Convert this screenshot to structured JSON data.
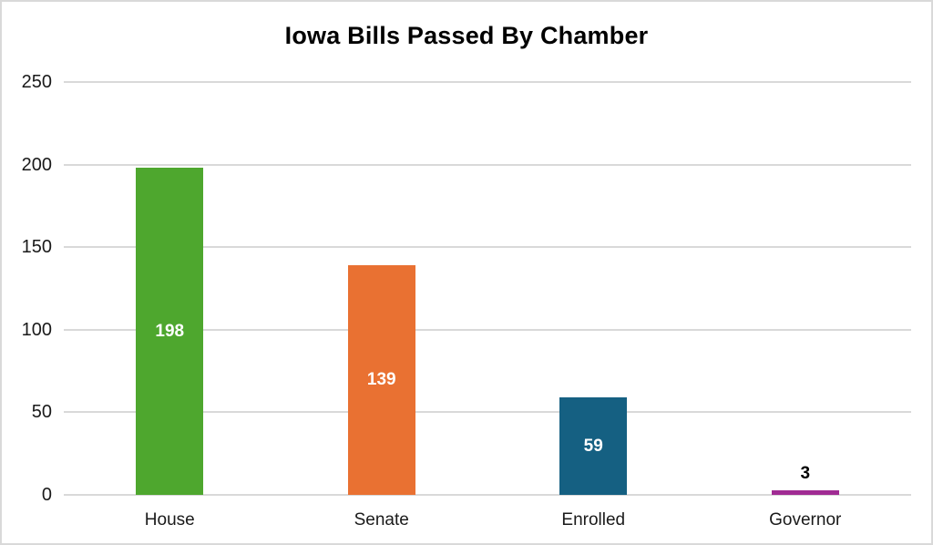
{
  "chart_data": {
    "type": "bar",
    "title": "Iowa Bills Passed By Chamber",
    "categories": [
      "House",
      "Senate",
      "Enrolled",
      "Governor"
    ],
    "values": [
      198,
      139,
      59,
      3
    ],
    "data_labels": [
      "198",
      "139",
      "59",
      "3"
    ],
    "bar_colors": [
      "#4EA72E",
      "#E97132",
      "#156082",
      "#A02B93"
    ],
    "xlabel": "",
    "ylabel": "",
    "ylim": [
      0,
      250
    ],
    "yticks": [
      0,
      50,
      100,
      150,
      200,
      250
    ],
    "grid": "horizontal",
    "legend": "none",
    "colors": {
      "gridline": "#D9D9D9",
      "frame_border": "#D9D9D9",
      "tick_text": "#1A1A1A",
      "title_text": "#000000",
      "label_inside_bar": "#FFFFFF",
      "label_outside_bar": "#000000",
      "background": "#FFFFFF"
    }
  }
}
